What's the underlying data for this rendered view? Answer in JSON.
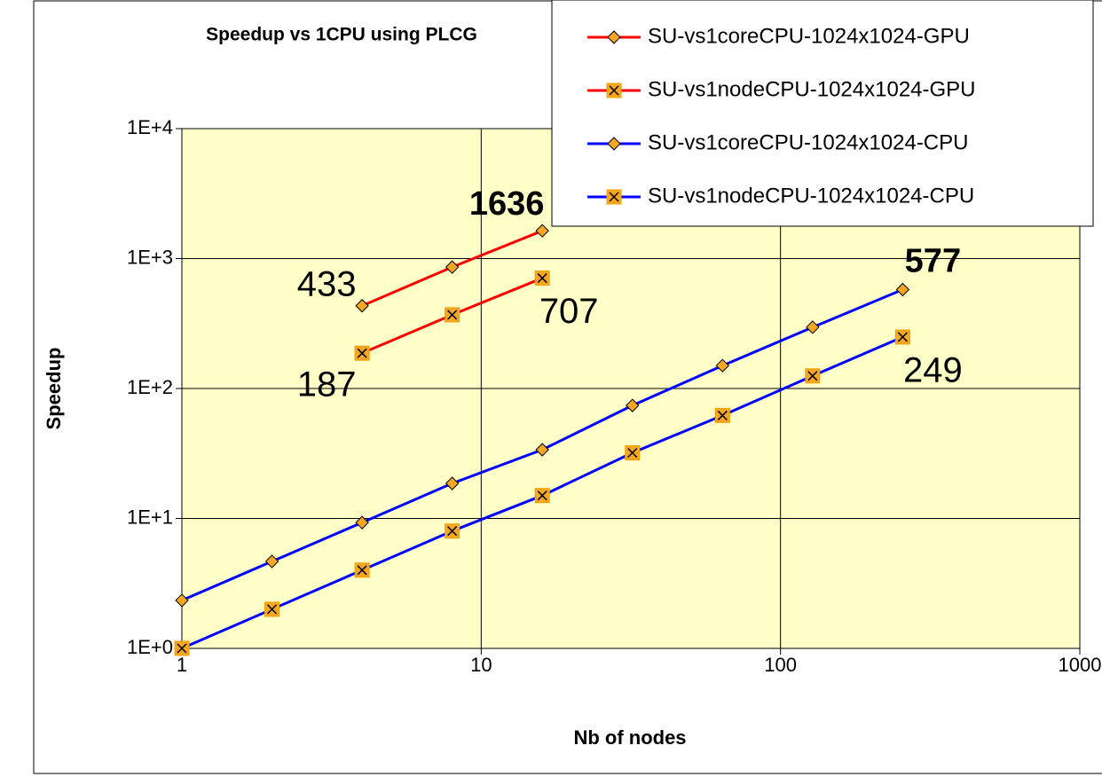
{
  "chart_data": {
    "type": "line",
    "title": "Speedup vs 1CPU using PLCG",
    "x_label": "Nb of nodes",
    "y_label": "Speedup",
    "log_x": true,
    "log_y": true,
    "grid": true,
    "legend": "top-right",
    "xlim": [
      1,
      1000
    ],
    "xticks": [
      1,
      10,
      100,
      1000
    ],
    "ylim": [
      1,
      10000
    ],
    "yticks": [
      {
        "value": 1,
        "label": "1E+0"
      },
      {
        "value": 10,
        "label": "1E+1"
      },
      {
        "value": 100,
        "label": "1E+2"
      },
      {
        "value": 1000,
        "label": "1E+3"
      },
      {
        "value": 10000,
        "label": "1E+4"
      }
    ],
    "series": [
      {
        "name": "SU-vs1coreCPU-1024x1024-GPU",
        "color": "#ff0000",
        "marker": "diamond",
        "x": [
          4,
          8,
          16
        ],
        "values": [
          433,
          860,
          1636
        ],
        "value_labels": [
          "433",
          null,
          "1636"
        ]
      },
      {
        "name": "SU-vs1nodeCPU-1024x1024-GPU",
        "color": "#ff0000",
        "marker": "square-x",
        "x": [
          4,
          8,
          16
        ],
        "values": [
          187,
          369,
          707
        ],
        "value_labels": [
          "187",
          null,
          "707"
        ]
      },
      {
        "name": "SU-vs1coreCPU-1024x1024-CPU",
        "color": "#0000ff",
        "marker": "diamond",
        "x": [
          1,
          2,
          4,
          8,
          16,
          32,
          64,
          128,
          256
        ],
        "values": [
          2.34,
          4.67,
          9.3,
          18.6,
          33.8,
          74,
          150,
          296,
          577
        ],
        "value_labels": [
          null,
          null,
          null,
          null,
          null,
          null,
          null,
          null,
          "577"
        ]
      },
      {
        "name": "SU-vs1nodeCPU-1024x1024-CPU",
        "color": "#0000ff",
        "marker": "square-x",
        "x": [
          1,
          2,
          4,
          8,
          16,
          32,
          64,
          128,
          256
        ],
        "values": [
          1,
          2,
          4,
          8,
          15,
          32,
          62,
          125,
          249
        ],
        "value_labels": [
          null,
          null,
          null,
          null,
          null,
          null,
          null,
          null,
          "249"
        ]
      }
    ]
  }
}
